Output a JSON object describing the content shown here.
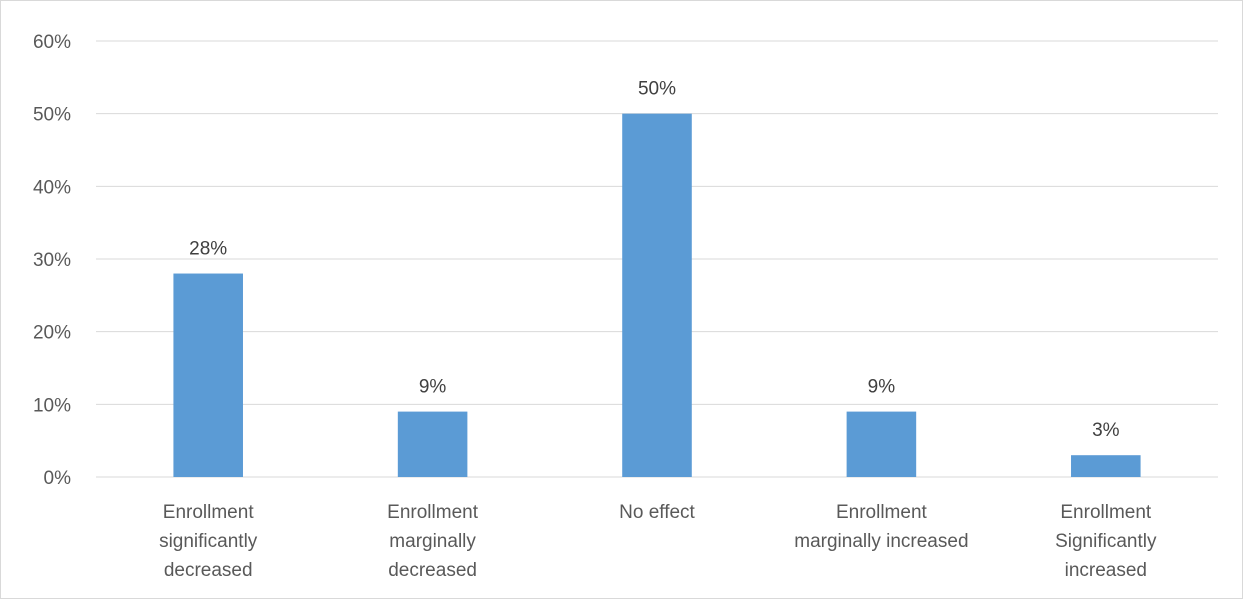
{
  "chart_data": {
    "type": "bar",
    "categories": [
      [
        "Enrollment",
        "significantly",
        "decreased"
      ],
      [
        "Enrollment",
        "marginally",
        "decreased"
      ],
      [
        "No effect"
      ],
      [
        "Enrollment",
        "marginally increased"
      ],
      [
        "Enrollment",
        "Significantly",
        "increased"
      ]
    ],
    "values": [
      28,
      9,
      50,
      9,
      3
    ],
    "value_labels": [
      "28%",
      "9%",
      "50%",
      "9%",
      "3%"
    ],
    "title": "",
    "xlabel": "",
    "ylabel": "",
    "ylim": [
      0,
      60
    ],
    "yticks": [
      0,
      10,
      20,
      30,
      40,
      50,
      60
    ],
    "ytick_labels": [
      "0%",
      "10%",
      "20%",
      "30%",
      "40%",
      "50%",
      "60%"
    ],
    "grid": true,
    "legend": "none",
    "bar_color": "#5b9bd5",
    "gridline_color": "#d9d9d9"
  }
}
